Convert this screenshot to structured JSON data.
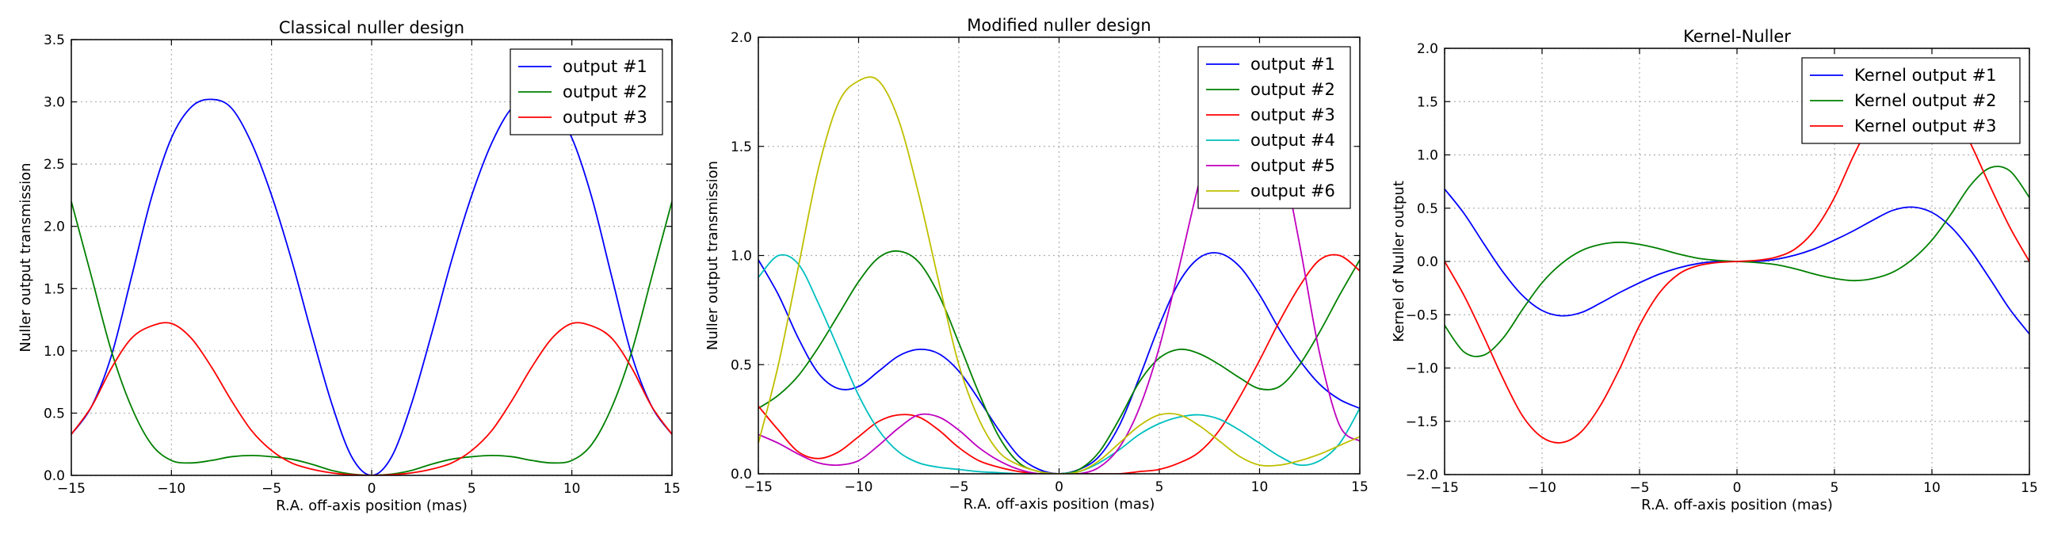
{
  "chart_data": [
    {
      "type": "line",
      "title": "Classical nuller design",
      "xlabel": "R.A. off-axis position (mas)",
      "ylabel": "Nuller output transmission",
      "xlim": [
        -15,
        15
      ],
      "ylim": [
        0,
        3.5
      ],
      "xticks": [
        "−15",
        "−10",
        "−5",
        "0",
        "5",
        "10",
        "15"
      ],
      "yticks": [
        "0.0",
        "0.5",
        "1.0",
        "1.5",
        "2.0",
        "2.5",
        "3.0",
        "3.5"
      ],
      "grid": true,
      "legend_position": "top-right",
      "x": [
        -15,
        -14,
        -13,
        -12,
        -11,
        -10,
        -9,
        -8,
        -7,
        -6,
        -5,
        -4,
        -3,
        -2,
        -1,
        0,
        1,
        2,
        3,
        4,
        5,
        6,
        7,
        8,
        9,
        10,
        11,
        12,
        13,
        14,
        15
      ],
      "series": [
        {
          "name": "output #1",
          "color": "#0000ff",
          "values": [
            0.33,
            0.55,
            0.96,
            1.59,
            2.23,
            2.71,
            2.96,
            3.02,
            2.95,
            2.67,
            2.25,
            1.73,
            1.14,
            0.58,
            0.15,
            0.0,
            0.15,
            0.58,
            1.14,
            1.73,
            2.25,
            2.67,
            2.95,
            3.02,
            2.96,
            2.71,
            2.23,
            1.59,
            0.96,
            0.55,
            0.33
          ]
        },
        {
          "name": "output #2",
          "color": "#008000",
          "values": [
            2.2,
            1.6,
            1.0,
            0.55,
            0.25,
            0.12,
            0.1,
            0.12,
            0.15,
            0.16,
            0.15,
            0.13,
            0.09,
            0.04,
            0.01,
            0.0,
            0.01,
            0.04,
            0.09,
            0.13,
            0.15,
            0.16,
            0.15,
            0.12,
            0.1,
            0.12,
            0.25,
            0.55,
            1.0,
            1.6,
            2.2
          ]
        },
        {
          "name": "output #3",
          "color": "#ff0000",
          "values": [
            0.33,
            0.55,
            0.86,
            1.1,
            1.2,
            1.22,
            1.1,
            0.87,
            0.6,
            0.36,
            0.2,
            0.1,
            0.05,
            0.02,
            0.005,
            0.0,
            0.005,
            0.02,
            0.05,
            0.1,
            0.2,
            0.36,
            0.6,
            0.87,
            1.1,
            1.22,
            1.2,
            1.1,
            0.86,
            0.55,
            0.33
          ]
        }
      ]
    },
    {
      "type": "line",
      "title": "Modified nuller design",
      "xlabel": "R.A. off-axis position (mas)",
      "ylabel": "Nuller output transmission",
      "xlim": [
        -15,
        15
      ],
      "ylim": [
        0,
        2.0
      ],
      "xticks": [
        "−15",
        "−10",
        "−5",
        "0",
        "5",
        "10",
        "15"
      ],
      "yticks": [
        "0.0",
        "0.5",
        "1.0",
        "1.5",
        "2.0"
      ],
      "grid": true,
      "legend_position": "top-right",
      "x": [
        -15,
        -14,
        -13,
        -12,
        -11,
        -10,
        -9,
        -8,
        -7,
        -6,
        -5,
        -4,
        -3,
        -2,
        -1,
        0,
        1,
        2,
        3,
        4,
        5,
        6,
        7,
        8,
        9,
        10,
        11,
        12,
        13,
        14,
        15
      ],
      "series": [
        {
          "name": "output #1",
          "color": "#0000ff",
          "values": [
            0.98,
            0.82,
            0.62,
            0.46,
            0.39,
            0.4,
            0.47,
            0.54,
            0.57,
            0.55,
            0.47,
            0.34,
            0.2,
            0.08,
            0.02,
            0.0,
            0.02,
            0.08,
            0.22,
            0.44,
            0.68,
            0.88,
            0.99,
            1.01,
            0.95,
            0.82,
            0.66,
            0.52,
            0.41,
            0.34,
            0.3
          ]
        },
        {
          "name": "output #2",
          "color": "#008000",
          "values": [
            0.3,
            0.36,
            0.45,
            0.58,
            0.73,
            0.88,
            0.99,
            1.02,
            0.97,
            0.82,
            0.6,
            0.37,
            0.17,
            0.05,
            0.01,
            0.0,
            0.02,
            0.1,
            0.25,
            0.42,
            0.53,
            0.57,
            0.55,
            0.5,
            0.44,
            0.39,
            0.4,
            0.5,
            0.65,
            0.82,
            0.98
          ]
        },
        {
          "name": "output #3",
          "color": "#ff0000",
          "values": [
            0.31,
            0.2,
            0.1,
            0.07,
            0.1,
            0.17,
            0.24,
            0.27,
            0.26,
            0.2,
            0.12,
            0.06,
            0.03,
            0.01,
            0.0,
            0.0,
            0.0,
            0.0,
            0.0,
            0.01,
            0.02,
            0.05,
            0.1,
            0.2,
            0.35,
            0.52,
            0.7,
            0.86,
            0.98,
            1.0,
            0.93
          ]
        },
        {
          "name": "output #4",
          "color": "#00bfbf",
          "values": [
            0.9,
            1.0,
            0.96,
            0.78,
            0.57,
            0.36,
            0.2,
            0.1,
            0.05,
            0.03,
            0.02,
            0.01,
            0.005,
            0.0,
            0.0,
            0.0,
            0.01,
            0.05,
            0.11,
            0.18,
            0.23,
            0.26,
            0.27,
            0.25,
            0.2,
            0.14,
            0.08,
            0.04,
            0.06,
            0.14,
            0.3
          ]
        },
        {
          "name": "output #5",
          "color": "#bf00bf",
          "values": [
            0.18,
            0.14,
            0.09,
            0.05,
            0.04,
            0.06,
            0.13,
            0.21,
            0.27,
            0.26,
            0.2,
            0.12,
            0.06,
            0.02,
            0.0,
            0.0,
            0.0,
            0.03,
            0.12,
            0.3,
            0.58,
            0.95,
            1.34,
            1.65,
            1.8,
            1.75,
            1.5,
            1.05,
            0.55,
            0.22,
            0.15
          ]
        },
        {
          "name": "output #6",
          "color": "#bfbf00",
          "values": [
            0.14,
            0.5,
            0.95,
            1.4,
            1.7,
            1.8,
            1.8,
            1.62,
            1.28,
            0.88,
            0.5,
            0.25,
            0.1,
            0.04,
            0.01,
            0.0,
            0.01,
            0.06,
            0.14,
            0.22,
            0.27,
            0.27,
            0.22,
            0.15,
            0.08,
            0.04,
            0.04,
            0.06,
            0.09,
            0.13,
            0.17
          ]
        }
      ]
    },
    {
      "type": "line",
      "title": "Kernel-Nuller",
      "xlabel": "R.A. off-axis position (mas)",
      "ylabel": "Kernel of Nuller output",
      "xlim": [
        -15,
        15
      ],
      "ylim": [
        -2.0,
        2.0
      ],
      "xticks": [
        "−15",
        "−10",
        "−5",
        "0",
        "5",
        "10",
        "15"
      ],
      "yticks": [
        "−2.0",
        "−1.5",
        "−1.0",
        "−0.5",
        "0.0",
        "0.5",
        "1.0",
        "1.5",
        "2.0"
      ],
      "grid": true,
      "legend_position": "top-right",
      "x": [
        -15,
        -14,
        -13,
        -12,
        -11,
        -10,
        -9,
        -8,
        -7,
        -6,
        -5,
        -4,
        -3,
        -2,
        -1,
        0,
        1,
        2,
        3,
        4,
        5,
        6,
        7,
        8,
        9,
        10,
        11,
        12,
        13,
        14,
        15
      ],
      "series": [
        {
          "name": "Kernel output #1",
          "color": "#0000ff",
          "values": [
            0.68,
            0.45,
            0.17,
            -0.1,
            -0.32,
            -0.46,
            -0.51,
            -0.48,
            -0.39,
            -0.29,
            -0.2,
            -0.12,
            -0.06,
            -0.02,
            0.0,
            0.0,
            0.0,
            0.02,
            0.06,
            0.12,
            0.2,
            0.29,
            0.39,
            0.48,
            0.51,
            0.46,
            0.32,
            0.1,
            -0.17,
            -0.45,
            -0.68
          ]
        },
        {
          "name": "Kernel output #2",
          "color": "#008000",
          "values": [
            -0.6,
            -0.85,
            -0.88,
            -0.72,
            -0.45,
            -0.2,
            -0.02,
            0.1,
            0.16,
            0.18,
            0.16,
            0.12,
            0.07,
            0.03,
            0.01,
            0.0,
            -0.01,
            -0.03,
            -0.07,
            -0.12,
            -0.16,
            -0.18,
            -0.16,
            -0.1,
            0.02,
            0.2,
            0.45,
            0.72,
            0.88,
            0.85,
            0.6
          ]
        },
        {
          "name": "Kernel output #3",
          "color": "#ff0000",
          "values": [
            0.0,
            -0.32,
            -0.7,
            -1.1,
            -1.45,
            -1.65,
            -1.7,
            -1.6,
            -1.35,
            -1.0,
            -0.6,
            -0.3,
            -0.12,
            -0.04,
            -0.01,
            0.0,
            0.01,
            0.04,
            0.12,
            0.3,
            0.6,
            1.0,
            1.35,
            1.6,
            1.7,
            1.65,
            1.45,
            1.1,
            0.7,
            0.32,
            0.0
          ]
        }
      ]
    }
  ]
}
